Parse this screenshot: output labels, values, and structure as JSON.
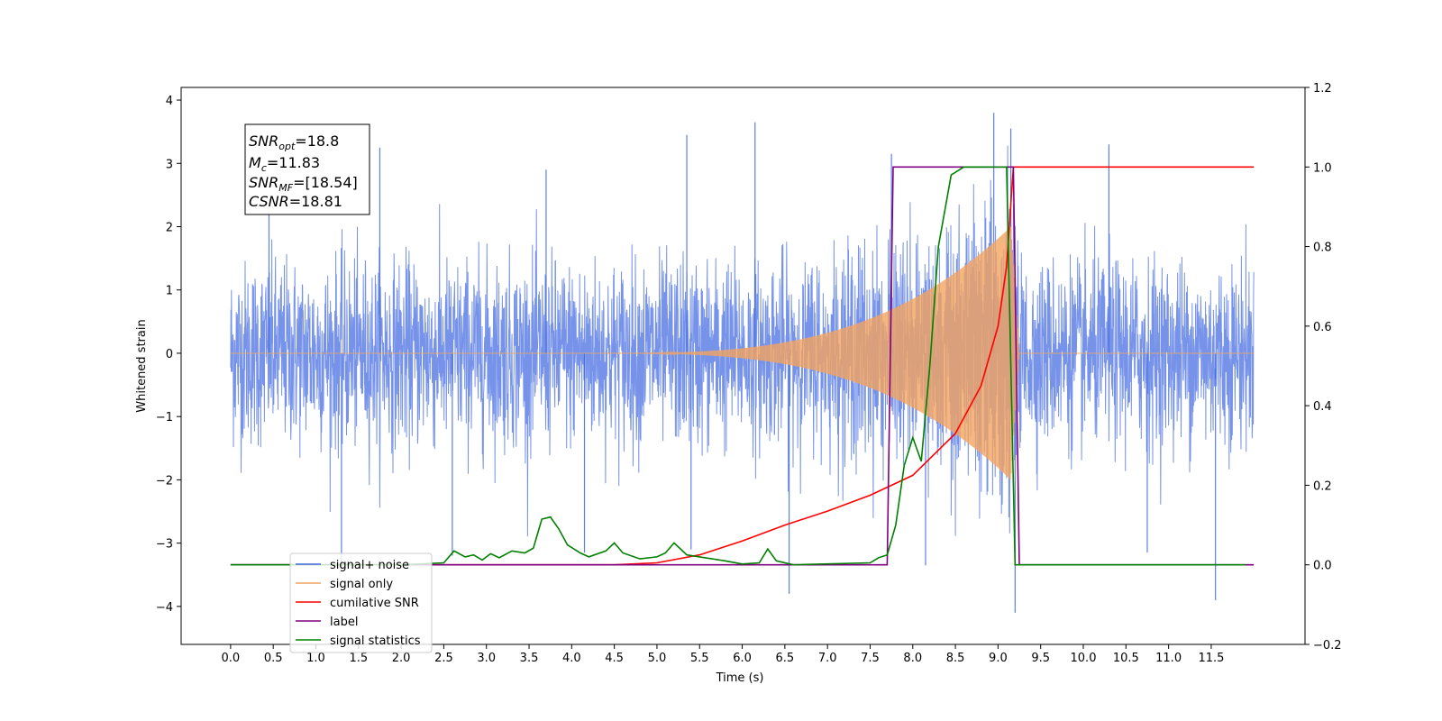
{
  "chart_data": {
    "type": "line",
    "xlabel": "Time (s)",
    "ylabel": "Whitened strain",
    "xlim": [
      -0.58,
      12.6
    ],
    "ylim": [
      -4.6,
      4.2
    ],
    "y2lim": [
      -0.2,
      1.2
    ],
    "x_ticks": [
      "0.0",
      "0.5",
      "1.0",
      "1.5",
      "2.0",
      "2.5",
      "3.0",
      "3.5",
      "4.0",
      "4.5",
      "5.0",
      "5.5",
      "6.0",
      "6.5",
      "7.0",
      "7.5",
      "8.0",
      "8.5",
      "9.0",
      "9.5",
      "10.0",
      "10.5",
      "11.0",
      "11.5"
    ],
    "y_ticks": [
      "4",
      "3",
      "2",
      "1",
      "0",
      "−1",
      "−2",
      "−3",
      "−4"
    ],
    "y2_ticks": [
      "1.2",
      "1.0",
      "0.8",
      "0.6",
      "0.4",
      "0.2",
      "0.0",
      "−0.2"
    ],
    "legend_position": "lower-left",
    "annotations": {
      "snr_opt": {
        "symbol": "SNR",
        "sub": "opt",
        "value": "=18.8"
      },
      "mc": {
        "symbol": "M",
        "sub": "c",
        "value": "=11.83"
      },
      "snr_mf": {
        "symbol": "SNR",
        "sub": "MF",
        "value": "=[18.54]"
      },
      "csnr": {
        "symbol": "CSNR",
        "sub": "",
        "value": "=18.81"
      }
    },
    "series": [
      {
        "name": "signal+ noise",
        "color": "#4169e1",
        "axis": "left",
        "description_values": {
          "x_range": [
            0.0,
            12.0
          ],
          "typical_amplitude": [
            -1.9,
            1.9
          ],
          "peaks_high": [
            [
              0.45,
              2.7
            ],
            [
              1.75,
              3.25
            ],
            [
              3.7,
              2.9
            ],
            [
              5.35,
              3.45
            ],
            [
              6.15,
              3.65
            ],
            [
              7.75,
              3.15
            ],
            [
              8.95,
              3.8
            ],
            [
              9.15,
              3.55
            ],
            [
              10.3,
              3.3
            ]
          ],
          "peaks_low": [
            [
              1.3,
              -3.4
            ],
            [
              2.6,
              -3.2
            ],
            [
              4.15,
              -3.15
            ],
            [
              5.4,
              -3.1
            ],
            [
              6.55,
              -3.8
            ],
            [
              8.15,
              -3.35
            ],
            [
              9.2,
              -4.1
            ],
            [
              11.55,
              -3.9
            ],
            [
              10.75,
              -3.15
            ]
          ]
        }
      },
      {
        "name": "signal only",
        "color": "#f4a460",
        "axis": "left",
        "description_values": {
          "chirp_start": 4.2,
          "chirp_end": 9.25,
          "max_amplitude": 2.0
        }
      },
      {
        "name": "cumilative SNR",
        "color": "#ff0000",
        "axis": "right",
        "points": [
          [
            0.0,
            0.0
          ],
          [
            4.5,
            0.0
          ],
          [
            5.0,
            0.005
          ],
          [
            5.5,
            0.025
          ],
          [
            6.0,
            0.06
          ],
          [
            6.5,
            0.1
          ],
          [
            7.0,
            0.135
          ],
          [
            7.5,
            0.175
          ],
          [
            8.0,
            0.225
          ],
          [
            8.5,
            0.33
          ],
          [
            8.8,
            0.45
          ],
          [
            9.0,
            0.6
          ],
          [
            9.1,
            0.75
          ],
          [
            9.18,
            1.0
          ],
          [
            12.0,
            1.0
          ]
        ]
      },
      {
        "name": "label",
        "color": "#800080",
        "axis": "right",
        "points": [
          [
            0.0,
            0.0
          ],
          [
            7.7,
            0.0
          ],
          [
            7.77,
            1.0
          ],
          [
            9.18,
            1.0
          ],
          [
            9.25,
            0.0
          ],
          [
            12.0,
            0.0
          ]
        ]
      },
      {
        "name": "signal statistics",
        "color": "#008000",
        "axis": "right",
        "points": [
          [
            0.0,
            0.0
          ],
          [
            2.0,
            0.0
          ],
          [
            2.5,
            0.005
          ],
          [
            2.62,
            0.035
          ],
          [
            2.75,
            0.02
          ],
          [
            2.85,
            0.025
          ],
          [
            2.95,
            0.012
          ],
          [
            3.05,
            0.028
          ],
          [
            3.15,
            0.018
          ],
          [
            3.3,
            0.035
          ],
          [
            3.45,
            0.03
          ],
          [
            3.55,
            0.042
          ],
          [
            3.65,
            0.115
          ],
          [
            3.75,
            0.12
          ],
          [
            3.85,
            0.09
          ],
          [
            3.95,
            0.05
          ],
          [
            4.1,
            0.03
          ],
          [
            4.2,
            0.02
          ],
          [
            4.4,
            0.035
          ],
          [
            4.5,
            0.055
          ],
          [
            4.6,
            0.03
          ],
          [
            4.8,
            0.015
          ],
          [
            5.0,
            0.02
          ],
          [
            5.1,
            0.03
          ],
          [
            5.2,
            0.055
          ],
          [
            5.35,
            0.025
          ],
          [
            5.5,
            0.02
          ],
          [
            5.8,
            0.01
          ],
          [
            6.0,
            0.002
          ],
          [
            6.2,
            0.005
          ],
          [
            6.3,
            0.04
          ],
          [
            6.4,
            0.01
          ],
          [
            6.6,
            0.0
          ],
          [
            7.5,
            0.005
          ],
          [
            7.6,
            0.018
          ],
          [
            7.7,
            0.025
          ],
          [
            7.8,
            0.1
          ],
          [
            7.9,
            0.25
          ],
          [
            8.0,
            0.32
          ],
          [
            8.1,
            0.26
          ],
          [
            8.2,
            0.5
          ],
          [
            8.3,
            0.8
          ],
          [
            8.45,
            0.98
          ],
          [
            8.6,
            1.0
          ],
          [
            9.1,
            1.0
          ],
          [
            9.2,
            0.0
          ],
          [
            11.9,
            0.0
          ]
        ]
      }
    ]
  },
  "legend": {
    "items": [
      {
        "label": "signal+ noise",
        "color": "#4169e1"
      },
      {
        "label": "signal only",
        "color": "#f4a460"
      },
      {
        "label": "cumilative SNR",
        "color": "#ff0000"
      },
      {
        "label": "label",
        "color": "#800080"
      },
      {
        "label": "signal statistics",
        "color": "#008000"
      }
    ]
  }
}
